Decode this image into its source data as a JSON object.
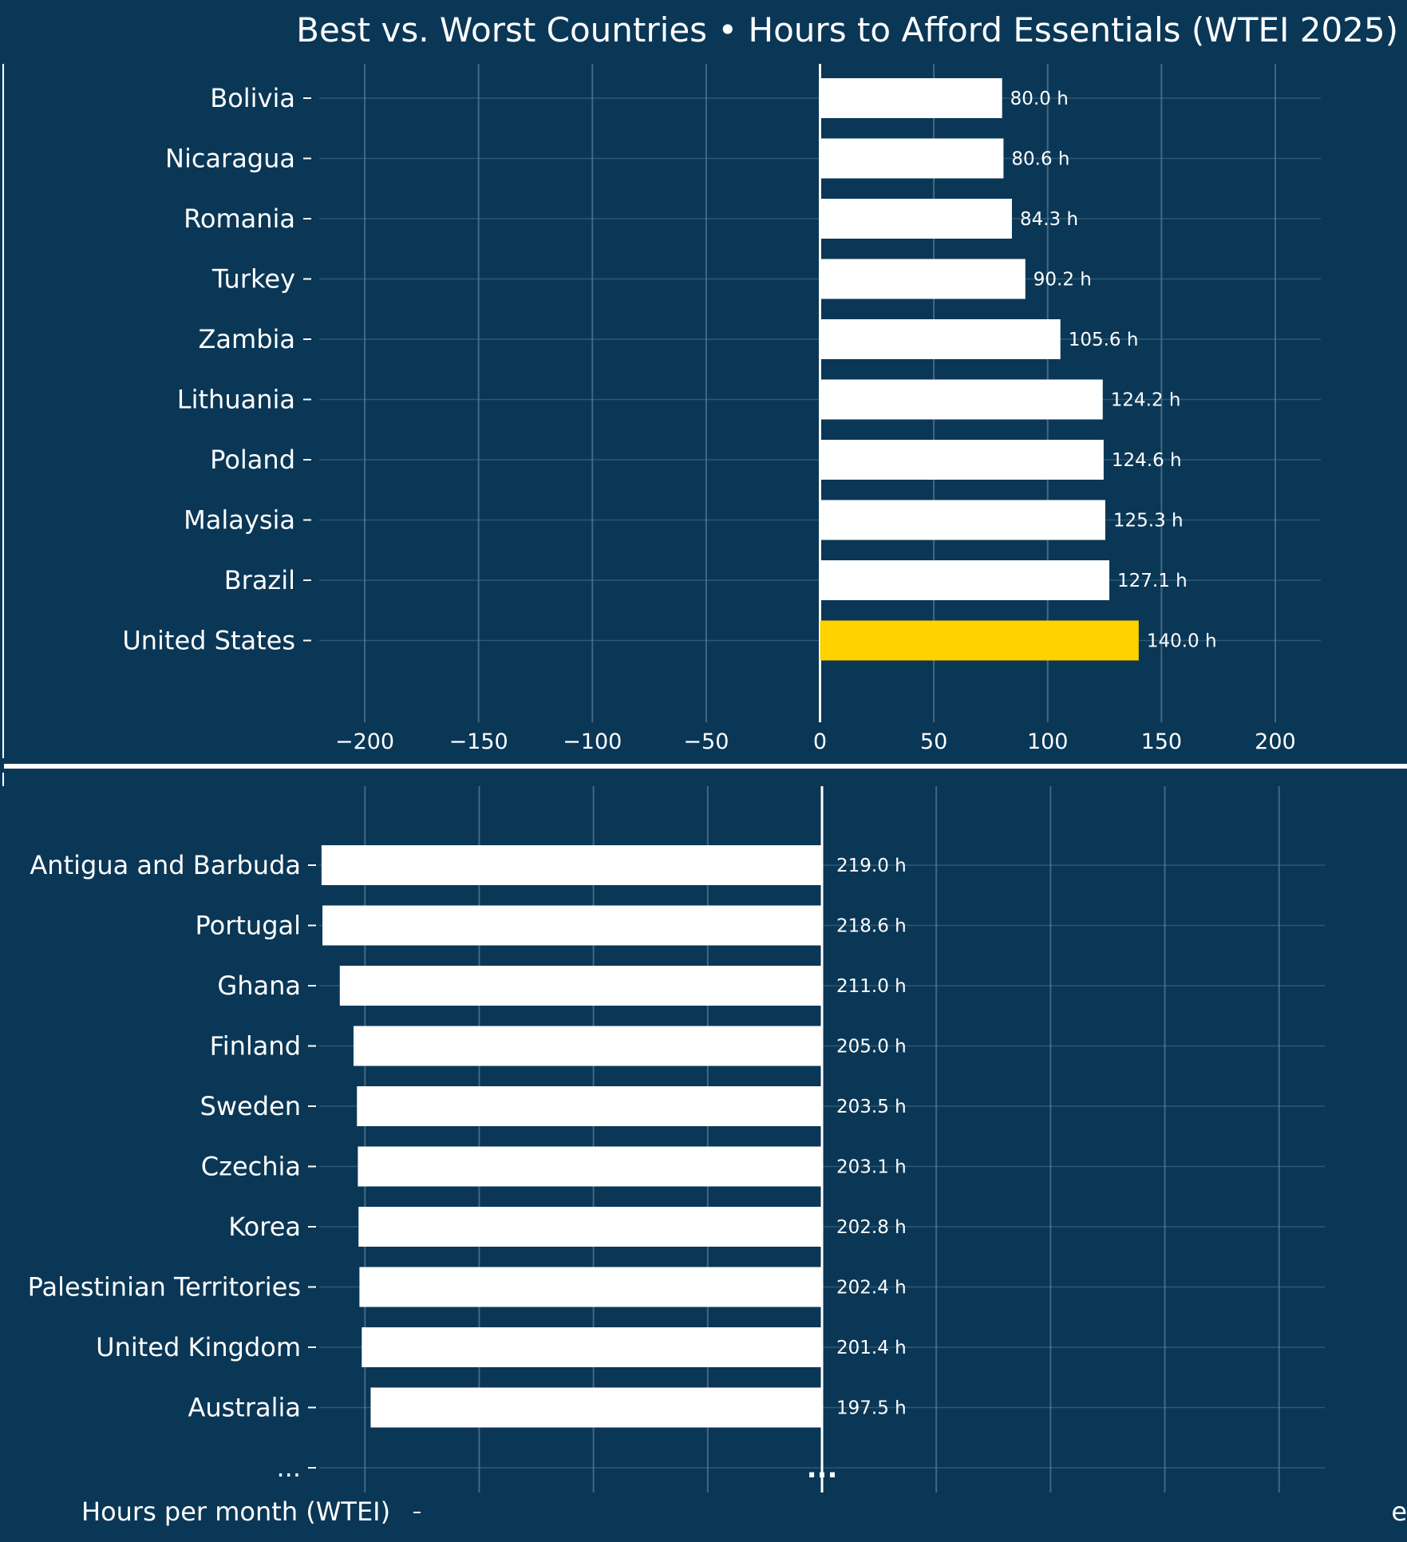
{
  "title": "Best vs. Worst Countries • Hours to Afford Essentials (WTEI 2025)",
  "colors": {
    "background": "#0b3756",
    "bar": "#ffffff",
    "highlight": "#ffd200",
    "grid": "#5f8aa3",
    "text": "#ffffff",
    "separator": "#ffffff"
  },
  "chart_data": [
    {
      "type": "bar",
      "orientation": "horizontal",
      "value_suffix": " h",
      "xlim": [
        -220,
        220
      ],
      "xticks": [
        -200,
        -150,
        -100,
        -50,
        0,
        50,
        100,
        150,
        200
      ],
      "xtick_labels": [
        "−200",
        "−150",
        "−100",
        "−50",
        "0",
        "50",
        "100",
        "150",
        "200"
      ],
      "grid": true,
      "categories": [
        "Bolivia",
        "Nicaragua",
        "Romania",
        "Turkey",
        "Zambia",
        "Lithuania",
        "Poland",
        "Malaysia",
        "Brazil",
        "United States"
      ],
      "values": [
        80.0,
        80.6,
        84.3,
        90.2,
        105.6,
        124.2,
        124.6,
        125.3,
        127.1,
        140.0
      ],
      "data_labels": [
        "80.0 h",
        "80.6 h",
        "84.3 h",
        "90.2 h",
        "105.6 h",
        "124.2 h",
        "124.6 h",
        "125.3 h",
        "127.1 h",
        "140.0 h"
      ],
      "highlight": "United States"
    },
    {
      "type": "bar",
      "orientation": "horizontal",
      "direction": "leftward",
      "value_suffix": " h",
      "xlim": [
        -220,
        220
      ],
      "grid": true,
      "categories": [
        "Antigua and Barbuda",
        "Portugal",
        "Ghana",
        "Finland",
        "Sweden",
        "Czechia",
        "Korea",
        "Palestinian Territories",
        "United Kingdom",
        "Australia",
        "..."
      ],
      "values": [
        219.0,
        218.6,
        211.0,
        205.0,
        203.5,
        203.1,
        202.8,
        202.4,
        201.4,
        197.5,
        null
      ],
      "data_labels": [
        "219.0 h",
        "218.6 h",
        "211.0 h",
        "205.0 h",
        "203.5 h",
        "203.1 h",
        "202.8 h",
        "202.4 h",
        "201.4 h",
        "197.5 h",
        ""
      ],
      "xlabel": "Hours per month (WTEI)",
      "continuation_marker": "...",
      "edge_text": "e"
    }
  ]
}
